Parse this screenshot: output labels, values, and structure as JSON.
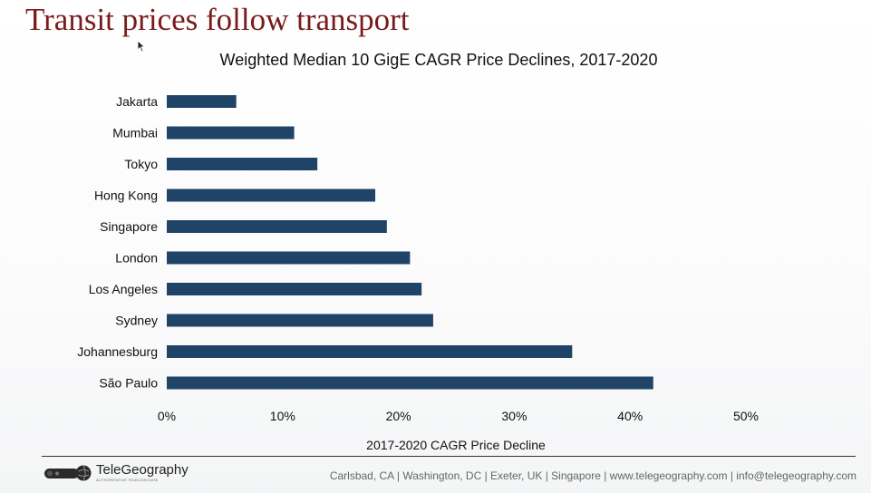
{
  "slide": {
    "title": "Transit prices follow transport"
  },
  "chart_data": {
    "type": "bar",
    "orientation": "horizontal",
    "title": "Weighted Median 10 GigE CAGR Price Declines, 2017-2020",
    "xlabel": "2017-2020 CAGR Price Decline",
    "ylabel": "",
    "categories": [
      "Jakarta",
      "Mumbai",
      "Tokyo",
      "Hong Kong",
      "Singapore",
      "London",
      "Los Angeles",
      "Sydney",
      "Johannesburg",
      "São Paulo"
    ],
    "values": [
      6,
      11,
      13,
      18,
      19,
      21,
      22,
      23,
      35,
      42
    ],
    "xlim": [
      0,
      50
    ],
    "ticks": [
      0,
      10,
      20,
      30,
      40,
      50
    ],
    "tick_labels": [
      "0%",
      "10%",
      "20%",
      "30%",
      "40%",
      "50%"
    ],
    "bar_color": "#1f4468",
    "grid": false,
    "legend": "none"
  },
  "footer": {
    "brand": "TeleGeography",
    "tagline": "AUTHORITATIVE TELECOM DATA",
    "contact": "Carlsbad, CA | Washington, DC | Exeter, UK | Singapore | www.telegeography.com | info@telegeography.com"
  },
  "colors": {
    "title": "#7a1b1b",
    "bars": "#1f4468",
    "text": "#111111",
    "footer_text": "#666666"
  },
  "icons": {
    "logo": "globe-logo-icon",
    "cursor": "mouse-pointer-icon"
  }
}
